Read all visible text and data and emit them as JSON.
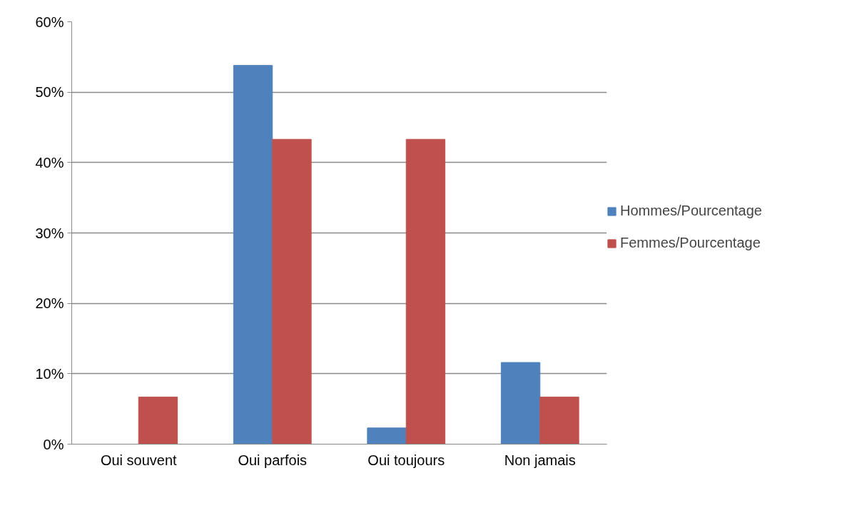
{
  "chart_data": {
    "type": "bar",
    "categories": [
      "Oui souvent",
      "Oui parfois",
      "Oui toujours",
      "Non jamais"
    ],
    "series": [
      {
        "name": "Hommes/Pourcentage",
        "color": "#4f81bd",
        "values": [
          0,
          53.8,
          2.3,
          11.6
        ]
      },
      {
        "name": "Femmes/Pourcentage",
        "color": "#c0504d",
        "values": [
          6.7,
          43.3,
          43.3,
          6.7
        ]
      }
    ],
    "ylim": [
      0,
      60
    ],
    "yticks": [
      {
        "value": 0,
        "label": "0%"
      },
      {
        "value": 10,
        "label": "10%"
      },
      {
        "value": 20,
        "label": "20%"
      },
      {
        "value": 30,
        "label": "30%"
      },
      {
        "value": 40,
        "label": "40%"
      },
      {
        "value": 50,
        "label": "50%"
      },
      {
        "value": 60,
        "label": "60%"
      }
    ],
    "grid": "y",
    "legend": "right"
  }
}
